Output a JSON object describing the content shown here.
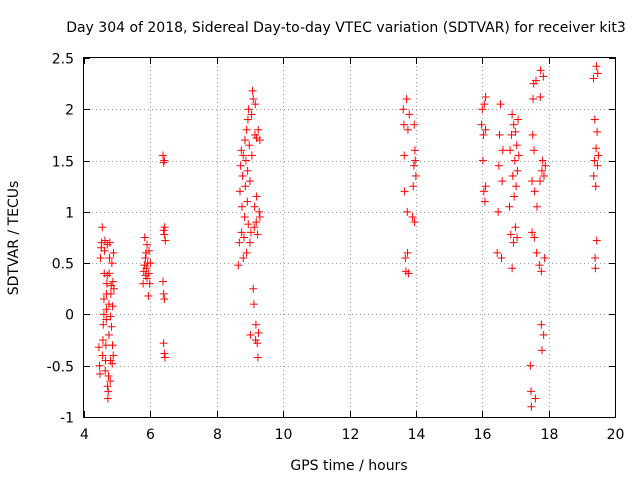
{
  "chart_data": {
    "type": "scatter",
    "title": "Day 304 of 2018, Sidereal Day-to-day VTEC variation (SDTVAR) for receiver kit3",
    "xlabel": "GPS time / hours",
    "ylabel": "SDTVAR / TECUs",
    "xlim": [
      4,
      20
    ],
    "ylim": [
      -1,
      2.5
    ],
    "xticks": [
      4,
      6,
      8,
      10,
      12,
      14,
      16,
      18,
      20
    ],
    "yticks": [
      -1,
      -0.5,
      0,
      0.5,
      1,
      1.5,
      2,
      2.5
    ],
    "xtick_labels": [
      "4",
      "6",
      "8",
      "10",
      "12",
      "14",
      "16",
      "18",
      "20"
    ],
    "ytick_labels": [
      "-1",
      "-0.5",
      "0",
      "0.5",
      "1",
      "1.5",
      "2",
      "2.5"
    ],
    "grid": true,
    "marker": "+",
    "color": "#ff0000",
    "series": [
      {
        "name": "kit3",
        "points": [
          [
            4.45,
            -0.32
          ],
          [
            4.47,
            -0.5
          ],
          [
            4.48,
            -0.58
          ],
          [
            4.5,
            0.55
          ],
          [
            4.52,
            0.65
          ],
          [
            4.53,
            0.7
          ],
          [
            4.55,
            0.85
          ],
          [
            4.56,
            -0.4
          ],
          [
            4.57,
            -0.25
          ],
          [
            4.58,
            -0.1
          ],
          [
            4.6,
            0.0
          ],
          [
            4.6,
            0.15
          ],
          [
            4.61,
            0.4
          ],
          [
            4.62,
            0.62
          ],
          [
            4.63,
            0.72
          ],
          [
            4.64,
            -0.55
          ],
          [
            4.65,
            -0.45
          ],
          [
            4.66,
            -0.3
          ],
          [
            4.67,
            -0.05
          ],
          [
            4.68,
            0.05
          ],
          [
            4.68,
            0.2
          ],
          [
            4.69,
            0.3
          ],
          [
            4.7,
            0.38
          ],
          [
            4.7,
            0.68
          ],
          [
            4.71,
            -0.7
          ],
          [
            4.72,
            -0.82
          ],
          [
            4.73,
            -0.75
          ],
          [
            4.74,
            -0.6
          ],
          [
            4.75,
            -0.2
          ],
          [
            4.75,
            0.1
          ],
          [
            4.76,
            0.4
          ],
          [
            4.77,
            0.55
          ],
          [
            4.78,
            0.7
          ],
          [
            4.79,
            -0.65
          ],
          [
            4.8,
            -0.45
          ],
          [
            4.8,
            -0.02
          ],
          [
            4.81,
            0.2
          ],
          [
            4.82,
            0.28
          ],
          [
            4.83,
            -0.12
          ],
          [
            4.84,
            0.5
          ],
          [
            4.85,
            -0.48
          ],
          [
            4.86,
            -0.3
          ],
          [
            4.86,
            0.08
          ],
          [
            4.87,
            0.32
          ],
          [
            4.88,
            -0.4
          ],
          [
            4.89,
            0.6
          ],
          [
            4.9,
            0.25
          ],
          [
            5.78,
            0.3
          ],
          [
            5.8,
            0.42
          ],
          [
            5.82,
            0.48
          ],
          [
            5.83,
            0.75
          ],
          [
            5.85,
            0.55
          ],
          [
            5.86,
            0.38
          ],
          [
            5.87,
            0.6
          ],
          [
            5.88,
            0.45
          ],
          [
            5.9,
            0.35
          ],
          [
            5.9,
            0.68
          ],
          [
            5.92,
            0.5
          ],
          [
            5.94,
            0.18
          ],
          [
            5.95,
            0.4
          ],
          [
            5.96,
            0.62
          ],
          [
            5.98,
            0.3
          ],
          [
            6.0,
            0.5
          ],
          [
            6.38,
            1.55
          ],
          [
            6.4,
            1.48
          ],
          [
            6.42,
            1.5
          ],
          [
            6.4,
            0.82
          ],
          [
            6.42,
            0.78
          ],
          [
            6.43,
            0.85
          ],
          [
            6.38,
            0.32
          ],
          [
            6.4,
            0.2
          ],
          [
            6.42,
            0.15
          ],
          [
            6.4,
            -0.28
          ],
          [
            6.42,
            -0.38
          ],
          [
            6.44,
            -0.42
          ],
          [
            6.45,
            0.72
          ],
          [
            8.65,
            0.48
          ],
          [
            8.68,
            0.7
          ],
          [
            8.7,
            1.2
          ],
          [
            8.72,
            1.45
          ],
          [
            8.74,
            1.6
          ],
          [
            8.75,
            0.8
          ],
          [
            8.76,
            1.05
          ],
          [
            8.78,
            1.35
          ],
          [
            8.8,
            1.55
          ],
          [
            8.8,
            0.55
          ],
          [
            8.82,
            0.75
          ],
          [
            8.84,
            0.95
          ],
          [
            8.85,
            1.7
          ],
          [
            8.86,
            1.25
          ],
          [
            8.88,
            1.5
          ],
          [
            8.9,
            0.6
          ],
          [
            8.9,
            1.8
          ],
          [
            8.92,
            1.1
          ],
          [
            8.93,
            1.4
          ],
          [
            8.94,
            1.9
          ],
          [
            8.95,
            0.88
          ],
          [
            8.96,
            2.0
          ],
          [
            8.98,
            1.65
          ],
          [
            9.0,
            1.3
          ],
          [
            9.0,
            0.7
          ],
          [
            9.02,
            -0.2
          ],
          [
            9.03,
            0.8
          ],
          [
            9.05,
            1.95
          ],
          [
            9.06,
            1.55
          ],
          [
            9.08,
            2.18
          ],
          [
            9.1,
            2.1
          ],
          [
            9.1,
            0.25
          ],
          [
            9.12,
            0.1
          ],
          [
            9.13,
            0.85
          ],
          [
            9.14,
            1.05
          ],
          [
            9.15,
            1.75
          ],
          [
            9.16,
            2.05
          ],
          [
            9.17,
            -0.25
          ],
          [
            9.18,
            -0.1
          ],
          [
            9.19,
            0.9
          ],
          [
            9.2,
            1.15
          ],
          [
            9.2,
            1.72
          ],
          [
            9.22,
            -0.28
          ],
          [
            9.23,
            0.78
          ],
          [
            9.24,
            -0.42
          ],
          [
            9.25,
            1.8
          ],
          [
            9.26,
            -0.18
          ],
          [
            9.28,
            1.0
          ],
          [
            9.3,
            1.7
          ],
          [
            9.3,
            0.95
          ],
          [
            13.62,
            2.0
          ],
          [
            13.64,
            1.85
          ],
          [
            13.65,
            1.55
          ],
          [
            13.66,
            1.2
          ],
          [
            13.68,
            0.55
          ],
          [
            13.7,
            0.42
          ],
          [
            13.72,
            2.1
          ],
          [
            13.74,
            1.0
          ],
          [
            13.75,
            0.6
          ],
          [
            13.76,
            1.8
          ],
          [
            13.78,
            0.4
          ],
          [
            13.8,
            1.95
          ],
          [
            13.9,
            0.95
          ],
          [
            13.92,
            1.25
          ],
          [
            13.94,
            1.45
          ],
          [
            13.95,
            1.85
          ],
          [
            13.96,
            0.9
          ],
          [
            13.97,
            1.6
          ],
          [
            13.98,
            1.5
          ],
          [
            14.0,
            1.35
          ],
          [
            15.98,
            1.85
          ],
          [
            16.0,
            2.0
          ],
          [
            16.02,
            1.5
          ],
          [
            16.04,
            1.75
          ],
          [
            16.05,
            1.2
          ],
          [
            16.06,
            2.05
          ],
          [
            16.08,
            1.1
          ],
          [
            16.1,
            1.25
          ],
          [
            16.1,
            1.8
          ],
          [
            16.1,
            2.12
          ],
          [
            16.45,
            0.6
          ],
          [
            16.48,
            1.0
          ],
          [
            16.5,
            1.45
          ],
          [
            16.52,
            1.75
          ],
          [
            16.55,
            2.05
          ],
          [
            16.58,
            0.55
          ],
          [
            16.6,
            1.3
          ],
          [
            16.62,
            1.6
          ],
          [
            16.82,
            1.05
          ],
          [
            16.84,
            1.6
          ],
          [
            16.86,
            0.78
          ],
          [
            16.88,
            1.75
          ],
          [
            16.9,
            0.45
          ],
          [
            16.9,
            1.95
          ],
          [
            16.92,
            1.35
          ],
          [
            16.94,
            0.7
          ],
          [
            16.95,
            1.85
          ],
          [
            16.96,
            1.15
          ],
          [
            16.98,
            1.5
          ],
          [
            17.0,
            1.78
          ],
          [
            17.0,
            0.85
          ],
          [
            17.02,
            1.25
          ],
          [
            17.04,
            1.65
          ],
          [
            17.05,
            0.75
          ],
          [
            17.06,
            1.4
          ],
          [
            17.08,
            1.9
          ],
          [
            17.1,
            1.55
          ],
          [
            17.45,
            -0.5
          ],
          [
            17.47,
            -0.75
          ],
          [
            17.48,
            -0.9
          ],
          [
            17.5,
            0.8
          ],
          [
            17.5,
            1.3
          ],
          [
            17.52,
            1.75
          ],
          [
            17.53,
            2.1
          ],
          [
            17.55,
            2.25
          ],
          [
            17.56,
            1.6
          ],
          [
            17.57,
            0.75
          ],
          [
            17.58,
            1.2
          ],
          [
            17.6,
            -0.82
          ],
          [
            17.62,
            2.28
          ],
          [
            17.64,
            0.6
          ],
          [
            17.65,
            1.05
          ],
          [
            17.72,
            0.48
          ],
          [
            17.74,
            1.3
          ],
          [
            17.75,
            2.12
          ],
          [
            17.76,
            2.38
          ],
          [
            17.78,
            -0.1
          ],
          [
            17.78,
            0.42
          ],
          [
            17.8,
            1.4
          ],
          [
            17.8,
            -0.35
          ],
          [
            17.82,
            1.5
          ],
          [
            17.84,
            2.32
          ],
          [
            17.85,
            -0.2
          ],
          [
            17.86,
            1.35
          ],
          [
            17.88,
            0.55
          ],
          [
            17.9,
            1.45
          ],
          [
            19.35,
            2.3
          ],
          [
            19.36,
            1.35
          ],
          [
            19.38,
            1.5
          ],
          [
            19.39,
            1.9
          ],
          [
            19.4,
            0.55
          ],
          [
            19.41,
            0.45
          ],
          [
            19.42,
            1.25
          ],
          [
            19.43,
            1.62
          ],
          [
            19.44,
            2.42
          ],
          [
            19.45,
            0.72
          ],
          [
            19.46,
            1.78
          ],
          [
            19.47,
            1.45
          ],
          [
            19.48,
            2.35
          ],
          [
            19.5,
            1.55
          ]
        ]
      }
    ]
  }
}
